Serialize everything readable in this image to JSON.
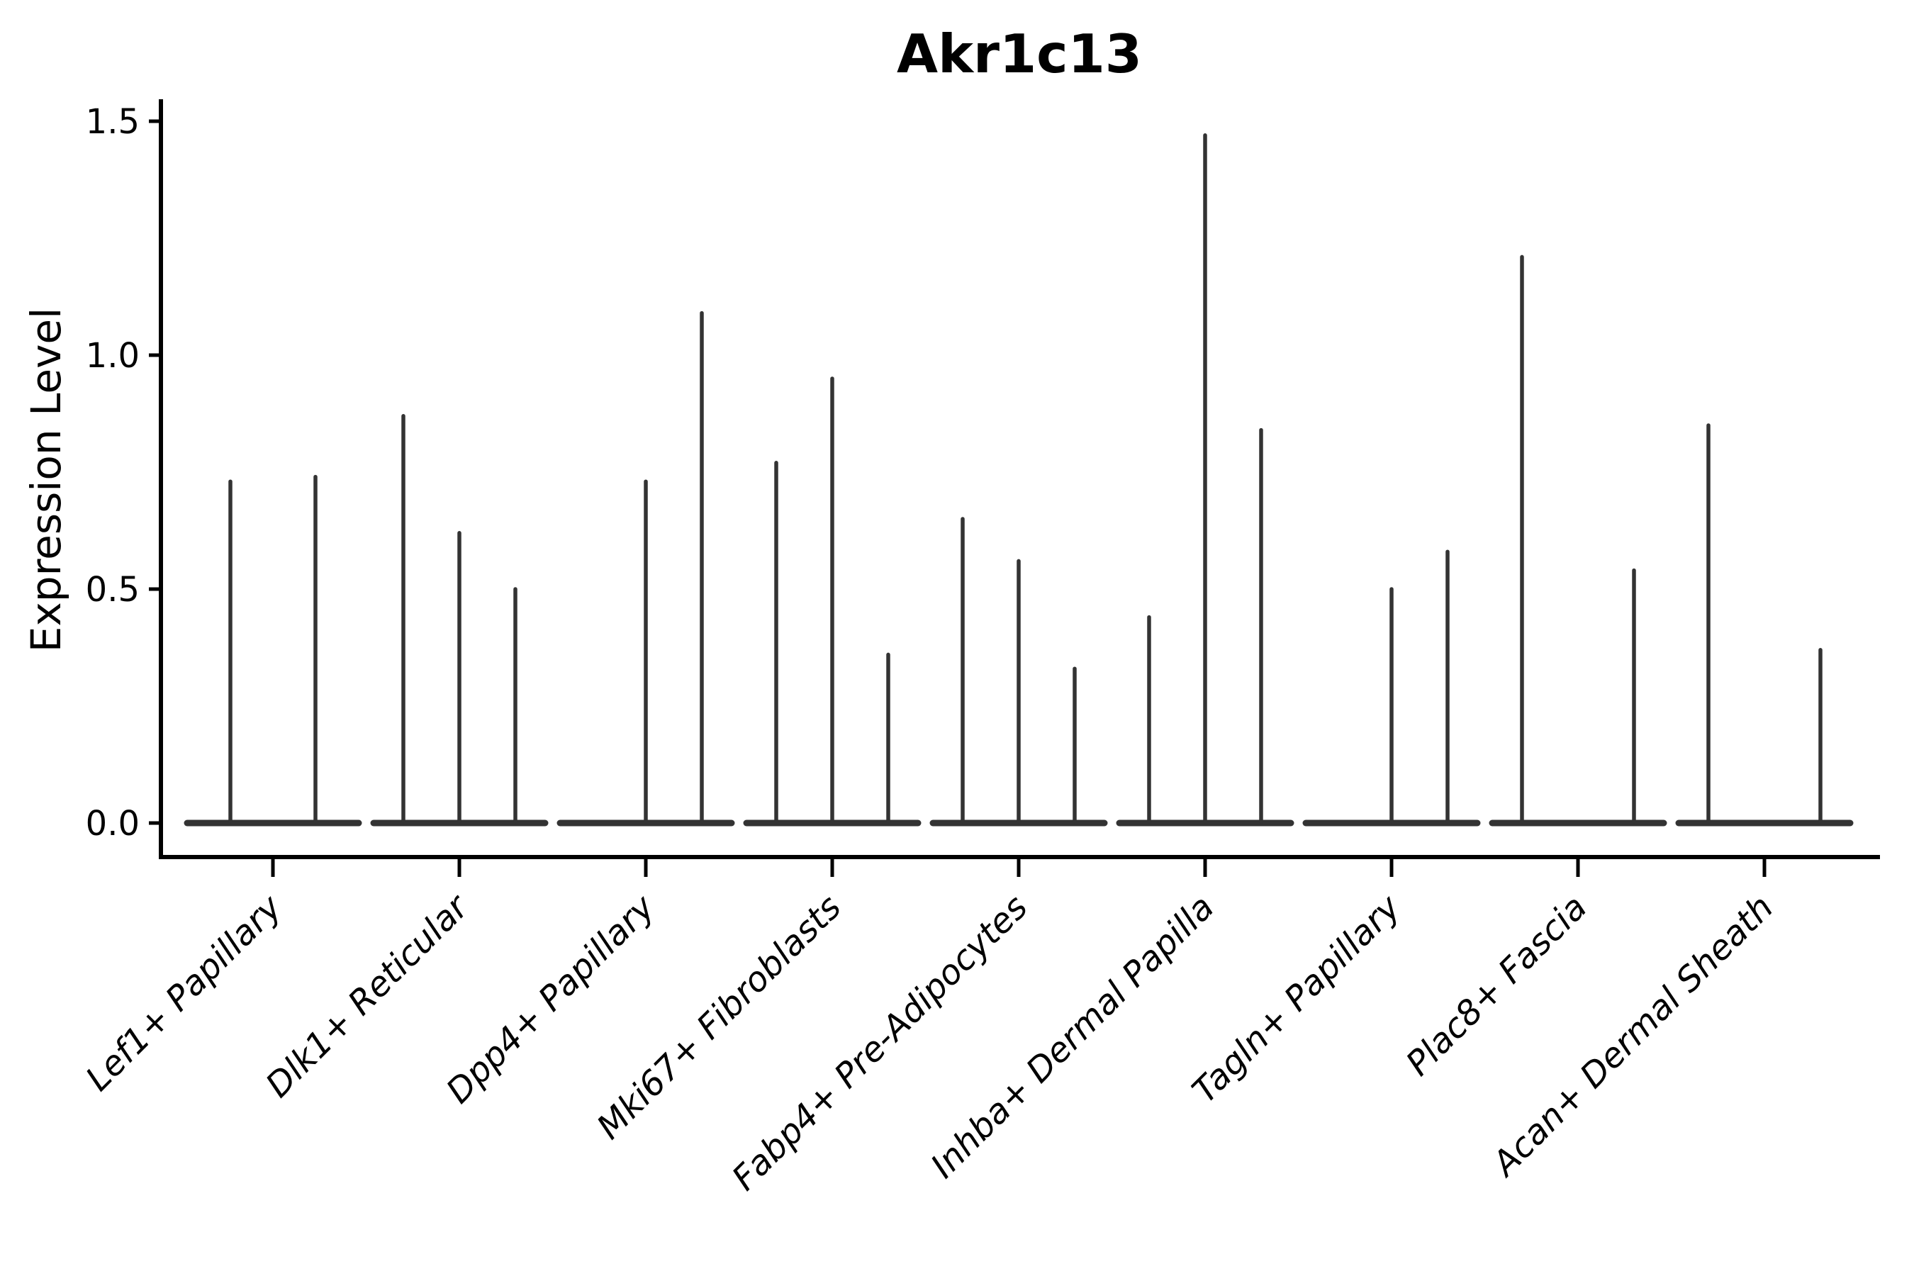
{
  "title": {
    "text": "Akr1c13"
  },
  "axes": {
    "ylabel": "Expression Level",
    "ytick_labels": [
      "0.0",
      "0.5",
      "1.0",
      "1.5"
    ]
  },
  "colors": {
    "background": "#ffffff",
    "violin": "#333333",
    "axis": "#000000",
    "text": "#000000"
  },
  "chart_data": {
    "type": "violin",
    "title": "Akr1c13",
    "xlabel": "",
    "ylabel": "Expression Level",
    "ylim": [
      -0.07,
      1.55
    ],
    "yticks": [
      0.0,
      0.5,
      1.0,
      1.5
    ],
    "grid": false,
    "legend": null,
    "categories": [
      "Lef1+ Papillary",
      "Dlk1+ Reticular",
      "Dpp4+ Papillary",
      "Mki67+ Fibroblasts",
      "Fabp4+ Pre-Adipocytes",
      "Inhba+ Dermal Papilla",
      "Tagln+ Papillary",
      "Plac8+ Fascia",
      "Acan+ Dermal Sheath"
    ],
    "groups": [
      {
        "label": "Lef1+ Papillary",
        "spikes": [
          {
            "offset": -0.23,
            "max": 0.73
          },
          {
            "offset": 0.23,
            "max": 0.74
          }
        ]
      },
      {
        "label": "Dlk1+ Reticular",
        "spikes": [
          {
            "offset": -0.3,
            "max": 0.87
          },
          {
            "offset": 0.0,
            "max": 0.62
          },
          {
            "offset": 0.3,
            "max": 0.5
          }
        ]
      },
      {
        "label": "Dpp4+ Papillary",
        "spikes": [
          {
            "offset": 0.0,
            "max": 0.73
          },
          {
            "offset": 0.3,
            "max": 1.09
          }
        ]
      },
      {
        "label": "Mki67+ Fibroblasts",
        "spikes": [
          {
            "offset": -0.3,
            "max": 0.77
          },
          {
            "offset": 0.0,
            "max": 0.95
          },
          {
            "offset": 0.3,
            "max": 0.36
          }
        ]
      },
      {
        "label": "Fabp4+ Pre-Adipocytes",
        "spikes": [
          {
            "offset": -0.3,
            "max": 0.65
          },
          {
            "offset": 0.0,
            "max": 0.56
          },
          {
            "offset": 0.3,
            "max": 0.33
          }
        ]
      },
      {
        "label": "Inhba+ Dermal Papilla",
        "spikes": [
          {
            "offset": -0.3,
            "max": 0.44
          },
          {
            "offset": 0.0,
            "max": 1.47
          },
          {
            "offset": 0.3,
            "max": 0.84
          }
        ]
      },
      {
        "label": "Tagln+ Papillary",
        "spikes": [
          {
            "offset": 0.0,
            "max": 0.5
          },
          {
            "offset": 0.3,
            "max": 0.58
          }
        ]
      },
      {
        "label": "Plac8+ Fascia",
        "spikes": [
          {
            "offset": -0.3,
            "max": 1.21
          },
          {
            "offset": 0.3,
            "max": 0.54
          }
        ]
      },
      {
        "label": "Acan+ Dermal Sheath",
        "spikes": [
          {
            "offset": -0.3,
            "max": 0.85
          },
          {
            "offset": 0.3,
            "max": 0.37
          }
        ]
      }
    ]
  }
}
